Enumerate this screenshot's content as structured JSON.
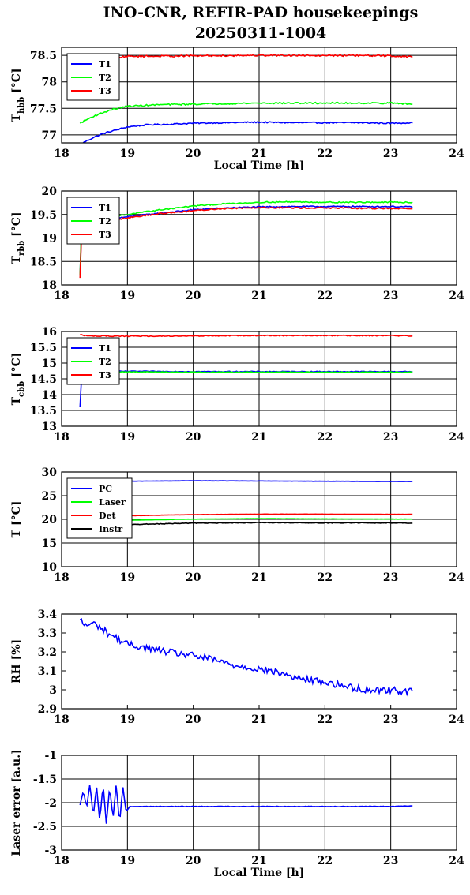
{
  "figure": {
    "title_line1": "INO-CNR, REFIR-PAD housekeepings",
    "title_line2": "20250311-1004"
  },
  "chart_data": [
    {
      "type": "line",
      "title": "",
      "xlabel": "Local Time [h]",
      "ylabel_main": "T",
      "ylabel_sub": "hbb",
      "ylabel_unit": "[°C]",
      "xlim": [
        18,
        24
      ],
      "ylim": [
        76.85,
        78.65
      ],
      "xticks": [
        "18",
        "19",
        "20",
        "21",
        "22",
        "23",
        "24"
      ],
      "yticks": [
        {
          "v": 77,
          "label": "77"
        },
        {
          "v": 77.5,
          "label": "77.5"
        },
        {
          "v": 78,
          "label": "78"
        },
        {
          "v": 78.5,
          "label": "78.5"
        }
      ],
      "grid": true,
      "legend": "top-left",
      "series": [
        {
          "name": "T1",
          "color": "#0000ff",
          "noise": 0.012,
          "points": [
            [
              18.28,
              76.82
            ],
            [
              18.4,
              76.9
            ],
            [
              18.5,
              76.96
            ],
            [
              18.6,
              77.01
            ],
            [
              18.7,
              77.05
            ],
            [
              18.85,
              77.1
            ],
            [
              19.0,
              77.15
            ],
            [
              19.3,
              77.19
            ],
            [
              19.6,
              77.2
            ],
            [
              20.0,
              77.22
            ],
            [
              20.5,
              77.23
            ],
            [
              21.0,
              77.24
            ],
            [
              21.5,
              77.23
            ],
            [
              22.0,
              77.23
            ],
            [
              22.5,
              77.23
            ],
            [
              23.0,
              77.22
            ],
            [
              23.33,
              77.23
            ]
          ]
        },
        {
          "name": "T2",
          "color": "#00ff00",
          "noise": 0.014,
          "points": [
            [
              18.28,
              77.22
            ],
            [
              18.4,
              77.3
            ],
            [
              18.5,
              77.36
            ],
            [
              18.65,
              77.43
            ],
            [
              18.8,
              77.49
            ],
            [
              19.0,
              77.54
            ],
            [
              19.5,
              77.57
            ],
            [
              20.0,
              77.58
            ],
            [
              20.5,
              77.59
            ],
            [
              21.0,
              77.6
            ],
            [
              21.5,
              77.6
            ],
            [
              22.0,
              77.6
            ],
            [
              22.5,
              77.6
            ],
            [
              23.0,
              77.6
            ],
            [
              23.33,
              77.58
            ]
          ]
        },
        {
          "name": "T3",
          "color": "#ff0000",
          "noise": 0.016,
          "points": [
            [
              18.28,
              78.3
            ],
            [
              18.4,
              78.38
            ],
            [
              18.6,
              78.43
            ],
            [
              18.8,
              78.46
            ],
            [
              19.0,
              78.48
            ],
            [
              20.0,
              78.49
            ],
            [
              21.0,
              78.5
            ],
            [
              22.0,
              78.5
            ],
            [
              23.0,
              78.49
            ],
            [
              23.33,
              78.47
            ]
          ]
        }
      ]
    },
    {
      "type": "line",
      "title": "",
      "xlabel": "",
      "ylabel_main": "T",
      "ylabel_sub": "rbb",
      "ylabel_unit": "[°C]",
      "xlim": [
        18,
        24
      ],
      "ylim": [
        18,
        20
      ],
      "xticks": [
        "18",
        "19",
        "20",
        "21",
        "22",
        "23",
        "24"
      ],
      "yticks": [
        {
          "v": 18,
          "label": "18"
        },
        {
          "v": 18.5,
          "label": "18.5"
        },
        {
          "v": 19,
          "label": "19"
        },
        {
          "v": 19.5,
          "label": "19.5"
        },
        {
          "v": 20,
          "label": "20"
        }
      ],
      "grid": true,
      "legend": "top-left",
      "series": [
        {
          "name": "T1",
          "color": "#0000ff",
          "noise": 0.012,
          "points": [
            [
              18.28,
              18.2
            ],
            [
              18.3,
              19.1
            ],
            [
              18.35,
              19.3
            ],
            [
              18.6,
              19.38
            ],
            [
              19.0,
              19.45
            ],
            [
              19.5,
              19.53
            ],
            [
              20.0,
              19.6
            ],
            [
              20.5,
              19.64
            ],
            [
              21.0,
              19.66
            ],
            [
              21.5,
              19.67
            ],
            [
              22.0,
              19.67
            ],
            [
              22.5,
              19.67
            ],
            [
              23.0,
              19.67
            ],
            [
              23.33,
              19.66
            ]
          ]
        },
        {
          "name": "T2",
          "color": "#00ff00",
          "noise": 0.012,
          "points": [
            [
              18.28,
              18.2
            ],
            [
              18.3,
              19.2
            ],
            [
              18.35,
              19.35
            ],
            [
              18.6,
              19.42
            ],
            [
              19.0,
              19.5
            ],
            [
              19.5,
              19.6
            ],
            [
              20.0,
              19.68
            ],
            [
              20.5,
              19.73
            ],
            [
              21.0,
              19.76
            ],
            [
              21.5,
              19.77
            ],
            [
              22.0,
              19.76
            ],
            [
              22.5,
              19.76
            ],
            [
              23.0,
              19.76
            ],
            [
              23.33,
              19.76
            ]
          ]
        },
        {
          "name": "T3",
          "color": "#ff0000",
          "noise": 0.014,
          "points": [
            [
              18.28,
              18.15
            ],
            [
              18.3,
              19.0
            ],
            [
              18.35,
              19.28
            ],
            [
              18.6,
              19.33
            ],
            [
              19.0,
              19.43
            ],
            [
              19.5,
              19.52
            ],
            [
              20.0,
              19.58
            ],
            [
              20.5,
              19.63
            ],
            [
              21.0,
              19.65
            ],
            [
              21.5,
              19.64
            ],
            [
              22.0,
              19.64
            ],
            [
              22.5,
              19.63
            ],
            [
              23.0,
              19.63
            ],
            [
              23.33,
              19.62
            ]
          ]
        }
      ]
    },
    {
      "type": "line",
      "title": "",
      "xlabel": "",
      "ylabel_main": "T",
      "ylabel_sub": "cbb",
      "ylabel_unit": "[°C]",
      "xlim": [
        18,
        24
      ],
      "ylim": [
        13,
        16
      ],
      "xticks": [
        "18",
        "19",
        "20",
        "21",
        "22",
        "23",
        "24"
      ],
      "yticks": [
        {
          "v": 13,
          "label": "13"
        },
        {
          "v": 13.5,
          "label": "13.5"
        },
        {
          "v": 14,
          "label": "14"
        },
        {
          "v": 14.5,
          "label": "14.5"
        },
        {
          "v": 15,
          "label": "15"
        },
        {
          "v": 15.5,
          "label": "15.5"
        },
        {
          "v": 16,
          "label": "16"
        }
      ],
      "grid": true,
      "legend": "top-left",
      "series": [
        {
          "name": "T1",
          "color": "#0000ff",
          "noise": 0.012,
          "points": [
            [
              18.28,
              13.6
            ],
            [
              18.3,
              14.5
            ],
            [
              18.35,
              14.74
            ],
            [
              19.0,
              14.74
            ],
            [
              20.0,
              14.73
            ],
            [
              21.0,
              14.73
            ],
            [
              22.0,
              14.73
            ],
            [
              23.0,
              14.73
            ],
            [
              23.33,
              14.73
            ]
          ]
        },
        {
          "name": "T2",
          "color": "#00ff00",
          "noise": 0.012,
          "points": [
            [
              18.28,
              14.55
            ],
            [
              18.35,
              14.72
            ],
            [
              19.0,
              14.72
            ],
            [
              20.0,
              14.71
            ],
            [
              21.0,
              14.71
            ],
            [
              22.0,
              14.71
            ],
            [
              23.0,
              14.71
            ],
            [
              23.33,
              14.71
            ]
          ]
        },
        {
          "name": "T3",
          "color": "#ff0000",
          "noise": 0.014,
          "points": [
            [
              18.28,
              15.9
            ],
            [
              18.4,
              15.86
            ],
            [
              19.0,
              15.85
            ],
            [
              20.0,
              15.86
            ],
            [
              21.0,
              15.87
            ],
            [
              22.0,
              15.87
            ],
            [
              23.0,
              15.87
            ],
            [
              23.33,
              15.86
            ]
          ]
        }
      ]
    },
    {
      "type": "line",
      "title": "",
      "xlabel": "",
      "ylabel_main": "T [°C]",
      "ylabel_sub": "",
      "ylabel_unit": "",
      "xlim": [
        18,
        24
      ],
      "ylim": [
        10,
        30
      ],
      "xticks": [
        "18",
        "19",
        "20",
        "21",
        "22",
        "23",
        "24"
      ],
      "yticks": [
        {
          "v": 10,
          "label": "10"
        },
        {
          "v": 15,
          "label": "15"
        },
        {
          "v": 20,
          "label": "20"
        },
        {
          "v": 25,
          "label": "25"
        },
        {
          "v": 30,
          "label": "30"
        }
      ],
      "grid": true,
      "legend": "top-left",
      "series": [
        {
          "name": "PC",
          "color": "#0000ff",
          "noise": 0.02,
          "points": [
            [
              18.28,
              28.0
            ],
            [
              19.0,
              28.05
            ],
            [
              20.0,
              28.15
            ],
            [
              21.0,
              28.1
            ],
            [
              22.0,
              28.05
            ],
            [
              23.0,
              28.0
            ],
            [
              23.33,
              28.0
            ]
          ]
        },
        {
          "name": "Laser",
          "color": "#00ff00",
          "noise": 0.02,
          "points": [
            [
              18.28,
              19.6
            ],
            [
              19.0,
              19.8
            ],
            [
              20.0,
              20.05
            ],
            [
              21.0,
              20.15
            ],
            [
              22.0,
              20.1
            ],
            [
              23.0,
              20.05
            ],
            [
              23.33,
              20.05
            ]
          ]
        },
        {
          "name": "Det",
          "color": "#ff0000",
          "noise": 0.02,
          "points": [
            [
              18.28,
              20.6
            ],
            [
              19.0,
              20.75
            ],
            [
              20.0,
              21.0
            ],
            [
              21.0,
              21.1
            ],
            [
              22.0,
              21.1
            ],
            [
              23.0,
              21.05
            ],
            [
              23.33,
              21.05
            ]
          ]
        },
        {
          "name": "Instr",
          "color": "#000000",
          "noise": 0.07,
          "points": [
            [
              18.28,
              18.6
            ],
            [
              19.0,
              18.9
            ],
            [
              20.0,
              19.2
            ],
            [
              21.0,
              19.3
            ],
            [
              22.0,
              19.25
            ],
            [
              23.0,
              19.25
            ],
            [
              23.33,
              19.2
            ]
          ]
        }
      ]
    },
    {
      "type": "line",
      "title": "",
      "xlabel": "",
      "ylabel_main": "RH [%]",
      "ylabel_sub": "",
      "ylabel_unit": "",
      "xlim": [
        18,
        24
      ],
      "ylim": [
        2.9,
        3.4
      ],
      "xticks": [
        "18",
        "19",
        "20",
        "21",
        "22",
        "23",
        "24"
      ],
      "yticks": [
        {
          "v": 2.9,
          "label": "2.9"
        },
        {
          "v": 3,
          "label": "3"
        },
        {
          "v": 3.1,
          "label": "3.1"
        },
        {
          "v": 3.2,
          "label": "3.2"
        },
        {
          "v": 3.3,
          "label": "3.3"
        },
        {
          "v": 3.4,
          "label": "3.4"
        }
      ],
      "grid": false,
      "legend": "none",
      "series": [
        {
          "name": "",
          "color": "#0000ff",
          "noise": 0.018,
          "points": [
            [
              18.28,
              3.37
            ],
            [
              18.35,
              3.34
            ],
            [
              18.5,
              3.35
            ],
            [
              18.7,
              3.3
            ],
            [
              19.0,
              3.24
            ],
            [
              19.3,
              3.22
            ],
            [
              19.6,
              3.2
            ],
            [
              20.0,
              3.18
            ],
            [
              20.3,
              3.16
            ],
            [
              20.6,
              3.13
            ],
            [
              21.0,
              3.11
            ],
            [
              21.3,
              3.09
            ],
            [
              21.6,
              3.06
            ],
            [
              22.0,
              3.04
            ],
            [
              22.3,
              3.02
            ],
            [
              22.6,
              3.0
            ],
            [
              23.0,
              3.0
            ],
            [
              23.33,
              2.99
            ]
          ]
        }
      ]
    },
    {
      "type": "line",
      "title": "",
      "xlabel": "Local Time [h]",
      "ylabel_main": "Laser error [a.u.]",
      "ylabel_sub": "",
      "ylabel_unit": "",
      "xlim": [
        18,
        24
      ],
      "ylim": [
        -3,
        -1
      ],
      "xticks": [
        "18",
        "19",
        "20",
        "21",
        "22",
        "23",
        "24"
      ],
      "yticks": [
        {
          "v": -3,
          "label": "-3"
        },
        {
          "v": -2.5,
          "label": "-2.5"
        },
        {
          "v": -2,
          "label": "-2"
        },
        {
          "v": -1.5,
          "label": "-1.5"
        },
        {
          "v": -1,
          "label": "-1"
        }
      ],
      "grid": true,
      "legend": "none",
      "series": [
        {
          "name": "",
          "color": "#0000ff",
          "noise": 0.006,
          "points": [
            [
              18.28,
              -2.05
            ],
            [
              18.33,
              -1.75
            ],
            [
              18.38,
              -2.1
            ],
            [
              18.43,
              -1.6
            ],
            [
              18.48,
              -2.3
            ],
            [
              18.53,
              -1.65
            ],
            [
              18.58,
              -2.4
            ],
            [
              18.63,
              -1.6
            ],
            [
              18.68,
              -2.45
            ],
            [
              18.73,
              -1.65
            ],
            [
              18.78,
              -2.35
            ],
            [
              18.83,
              -1.6
            ],
            [
              18.88,
              -2.45
            ],
            [
              18.93,
              -1.65
            ],
            [
              18.98,
              -2.2
            ],
            [
              19.03,
              -2.08
            ],
            [
              20.0,
              -2.08
            ],
            [
              21.0,
              -2.08
            ],
            [
              22.0,
              -2.08
            ],
            [
              23.0,
              -2.08
            ],
            [
              23.33,
              -2.07
            ]
          ]
        }
      ]
    }
  ]
}
